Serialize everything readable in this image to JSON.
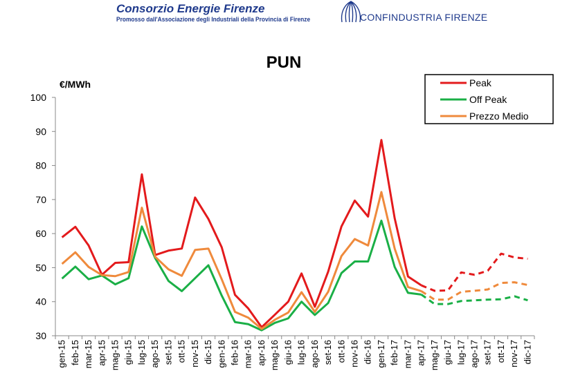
{
  "header": {
    "org_name": "Consorzio Energie Firenze",
    "org_subtitle": "Promosso dall'Associazione degli Industriali della Provincia di Firenze",
    "partner_name": "CONFINDUSTRIA FIRENZE",
    "brand_color": "#1f3a8c"
  },
  "chart_data": {
    "type": "line",
    "title": "PUN",
    "ylabel": "€/MWh",
    "xlabel": "",
    "ylim": [
      30,
      100
    ],
    "yticks": [
      30,
      40,
      50,
      60,
      70,
      80,
      90,
      100
    ],
    "grid": false,
    "legend_position": "top-right",
    "categories": [
      "gen-15",
      "feb-15",
      "mar-15",
      "apr-15",
      "mag-15",
      "giu-15",
      "lug-15",
      "ago-15",
      "set-15",
      "ott-15",
      "nov-15",
      "dic-15",
      "gen-16",
      "feb-16",
      "mar-16",
      "apr-16",
      "mag-16",
      "giu-16",
      "lug-16",
      "ago-16",
      "set-16",
      "ott-16",
      "nov-16",
      "dic-16",
      "gen-17",
      "feb-17",
      "mar-17",
      "apr-17",
      "mag-17",
      "giu-17",
      "lug-17",
      "ago-17",
      "set-17",
      "ott-17",
      "nov-17",
      "dic-17"
    ],
    "actual_through": "apr-17",
    "projected_style": "dashed",
    "series": [
      {
        "name": "Peak",
        "color": "#e31a1c",
        "values": [
          58.9,
          62.0,
          56.5,
          47.9,
          51.4,
          51.6,
          77.4,
          53.7,
          55.0,
          55.6,
          70.6,
          64.3,
          56.0,
          42.0,
          38.0,
          32.5,
          36.2,
          40.0,
          48.3,
          38.5,
          48.8,
          62.1,
          69.7,
          65.0,
          87.5,
          64.5,
          47.4,
          44.8,
          43.2,
          43.3,
          48.6,
          47.9,
          49.1,
          54.1,
          53.0,
          52.6
        ]
      },
      {
        "name": "Off Peak",
        "color": "#1aaf46",
        "values": [
          46.8,
          50.3,
          46.6,
          47.7,
          45.1,
          46.9,
          62.1,
          52.8,
          46.1,
          43.1,
          46.9,
          50.7,
          41.8,
          34.0,
          33.4,
          31.6,
          33.8,
          35.1,
          40.0,
          36.1,
          39.6,
          48.4,
          51.8,
          51.8,
          63.8,
          50.2,
          42.6,
          42.1,
          39.3,
          39.3,
          40.2,
          40.4,
          40.6,
          40.7,
          41.6,
          40.4
        ]
      },
      {
        "name": "Prezzo Medio",
        "color": "#ef8a3c",
        "values": [
          51.1,
          54.5,
          50.2,
          47.8,
          47.5,
          48.7,
          67.6,
          53.2,
          49.5,
          47.6,
          55.2,
          55.6,
          46.6,
          37.0,
          35.3,
          32.0,
          34.7,
          36.8,
          42.8,
          37.0,
          42.9,
          53.4,
          58.4,
          56.5,
          72.2,
          55.6,
          44.3,
          43.1,
          40.6,
          40.6,
          42.9,
          43.2,
          43.6,
          45.5,
          45.7,
          44.9
        ]
      }
    ]
  }
}
